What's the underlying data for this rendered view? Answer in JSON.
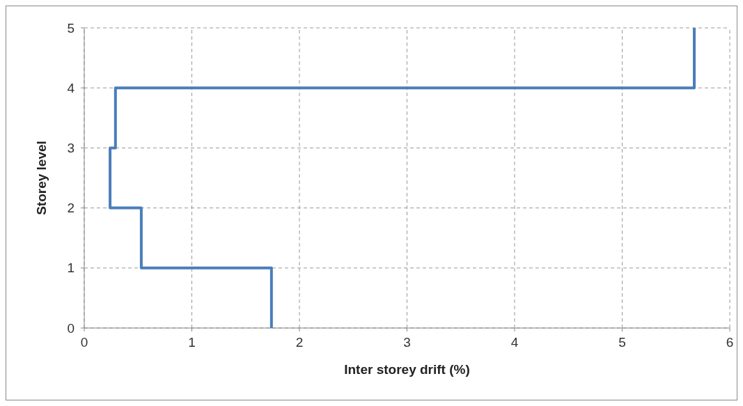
{
  "chart_data": {
    "type": "line",
    "xlabel": "Inter storey drift (%)",
    "ylabel": "Storey level",
    "series": [
      {
        "color": "#4a7ebb",
        "x": [
          1.74,
          1.74,
          0.53,
          0.53,
          0.24,
          0.24,
          0.29,
          0.29,
          5.67,
          5.67
        ],
        "values": [
          0,
          1,
          1,
          2,
          2,
          3,
          3,
          4,
          4,
          5
        ]
      }
    ],
    "xlim": [
      0,
      6
    ],
    "xticks": [
      0,
      1,
      2,
      3,
      4,
      5,
      6
    ],
    "ylim": [
      0,
      5
    ],
    "yticks": [
      0,
      1,
      2,
      3,
      4,
      5
    ],
    "grid": true,
    "marker": "none",
    "line_style": "solid"
  }
}
